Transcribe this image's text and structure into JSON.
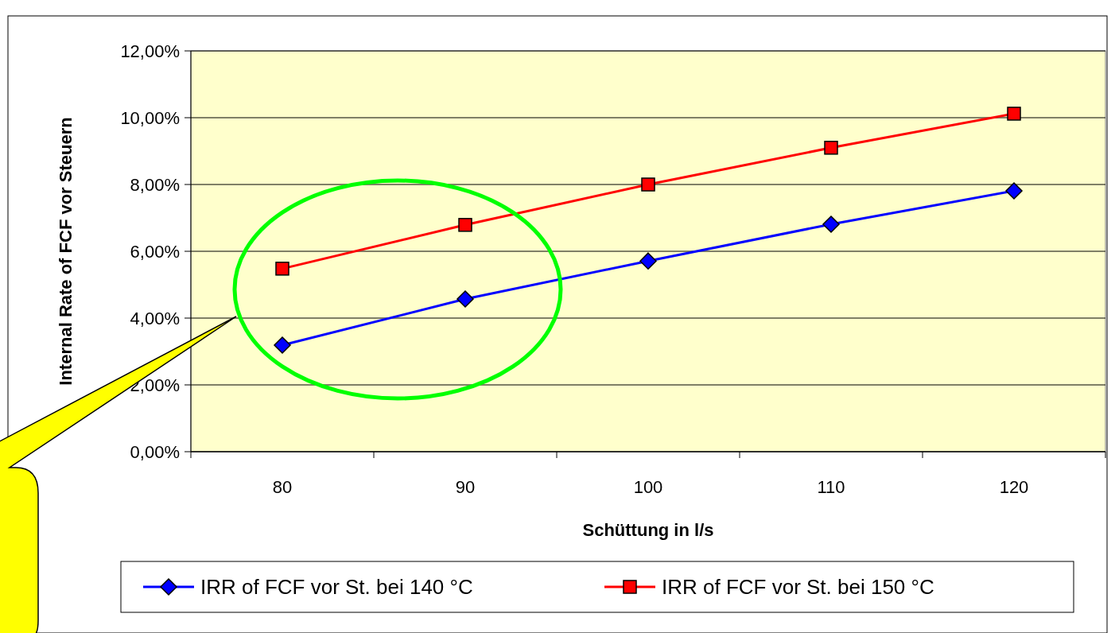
{
  "chart_data": {
    "type": "line",
    "xlabel": "Schüttung in l/s",
    "ylabel": "Internal Rate of FCF vor Steuern",
    "categories": [
      "80",
      "90",
      "100",
      "110",
      "120"
    ],
    "series": [
      {
        "name": "IRR of FCF vor St. bei 140 °C",
        "color": "#0000ff",
        "marker": "diamond",
        "values": [
          3.19,
          4.57,
          5.71,
          6.81,
          7.81
        ]
      },
      {
        "name": "IRR of FCF vor St. bei 150 °C",
        "color": "#ff0000",
        "marker": "square",
        "values": [
          5.48,
          6.79,
          8.0,
          9.1,
          10.12
        ]
      }
    ],
    "ylim": [
      0,
      12
    ],
    "yticks": [
      {
        "value": 0,
        "label": "0,00%"
      },
      {
        "value": 2,
        "label": "2,00%"
      },
      {
        "value": 4,
        "label": "4,00%"
      },
      {
        "value": 6,
        "label": "6,00%"
      },
      {
        "value": 8,
        "label": "8,00%"
      },
      {
        "value": 10,
        "label": "10,00%"
      },
      {
        "value": 12,
        "label": "12,00%"
      }
    ],
    "grid": "y",
    "legend": "bottom",
    "line_style": "solid"
  }
}
